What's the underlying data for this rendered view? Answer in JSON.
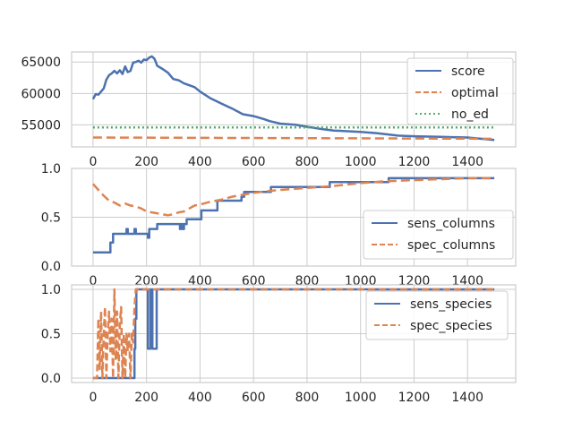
{
  "chart_data": [
    {
      "type": "line",
      "xlim": [
        -80,
        1580
      ],
      "ylim": [
        51500,
        66600
      ],
      "x_ticks": [
        0,
        200,
        400,
        600,
        800,
        1000,
        1200,
        1400
      ],
      "y_ticks": [
        55000,
        60000,
        65000
      ],
      "grid": true,
      "legend_position": "upper right",
      "series": [
        {
          "name": "score",
          "color": "#4c72b0",
          "dash": "solid",
          "points": [
            [
              0,
              59100
            ],
            [
              10,
              59900
            ],
            [
              20,
              59800
            ],
            [
              30,
              60300
            ],
            [
              40,
              60800
            ],
            [
              50,
              62200
            ],
            [
              60,
              62900
            ],
            [
              70,
              63200
            ],
            [
              80,
              63600
            ],
            [
              90,
              63200
            ],
            [
              100,
              63700
            ],
            [
              110,
              63100
            ],
            [
              120,
              64300
            ],
            [
              130,
              63400
            ],
            [
              140,
              63600
            ],
            [
              150,
              64900
            ],
            [
              160,
              65000
            ],
            [
              170,
              65200
            ],
            [
              180,
              64900
            ],
            [
              190,
              65400
            ],
            [
              200,
              65300
            ],
            [
              210,
              65700
            ],
            [
              220,
              65900
            ],
            [
              230,
              65500
            ],
            [
              240,
              64400
            ],
            [
              260,
              63900
            ],
            [
              280,
              63300
            ],
            [
              300,
              62300
            ],
            [
              320,
              62100
            ],
            [
              340,
              61600
            ],
            [
              360,
              61300
            ],
            [
              380,
              61000
            ],
            [
              400,
              60300
            ],
            [
              440,
              59200
            ],
            [
              480,
              58400
            ],
            [
              520,
              57600
            ],
            [
              560,
              56700
            ],
            [
              600,
              56400
            ],
            [
              640,
              55900
            ],
            [
              660,
              55600
            ],
            [
              700,
              55200
            ],
            [
              760,
              55000
            ],
            [
              800,
              54700
            ],
            [
              860,
              54300
            ],
            [
              900,
              54100
            ],
            [
              1000,
              53900
            ],
            [
              1060,
              53700
            ],
            [
              1100,
              53500
            ],
            [
              1140,
              53300
            ],
            [
              1200,
              53200
            ],
            [
              1300,
              53100
            ],
            [
              1400,
              53000
            ],
            [
              1450,
              52800
            ],
            [
              1500,
              52600
            ]
          ]
        },
        {
          "name": "optimal",
          "color": "#dd8452",
          "dash": "10,5",
          "points": [
            [
              0,
              53000
            ],
            [
              1500,
              52800
            ]
          ]
        },
        {
          "name": "no_ed",
          "color": "#55a868",
          "dash": "2,3",
          "points": [
            [
              0,
              54600
            ],
            [
              1500,
              54600
            ]
          ]
        }
      ]
    },
    {
      "type": "line",
      "xlim": [
        -80,
        1580
      ],
      "ylim": [
        0,
        1
      ],
      "x_ticks": [
        0,
        200,
        400,
        600,
        800,
        1000,
        1200,
        1400
      ],
      "y_ticks": [
        0.0,
        0.5,
        1.0
      ],
      "y_tick_labels": [
        "0.0",
        "0.5",
        "1.0"
      ],
      "grid": true,
      "legend_position": "center right",
      "series": [
        {
          "name": "sens_columns",
          "color": "#4c72b0",
          "dash": "solid",
          "step": true,
          "points": [
            [
              0,
              0.14
            ],
            [
              60,
              0.14
            ],
            [
              65,
              0.24
            ],
            [
              70,
              0.24
            ],
            [
              75,
              0.33
            ],
            [
              120,
              0.33
            ],
            [
              125,
              0.38
            ],
            [
              130,
              0.33
            ],
            [
              150,
              0.33
            ],
            [
              155,
              0.38
            ],
            [
              160,
              0.33
            ],
            [
              200,
              0.33
            ],
            [
              205,
              0.29
            ],
            [
              210,
              0.38
            ],
            [
              230,
              0.38
            ],
            [
              240,
              0.43
            ],
            [
              320,
              0.43
            ],
            [
              325,
              0.38
            ],
            [
              330,
              0.43
            ],
            [
              335,
              0.38
            ],
            [
              340,
              0.43
            ],
            [
              345,
              0.43
            ],
            [
              350,
              0.48
            ],
            [
              400,
              0.48
            ],
            [
              405,
              0.57
            ],
            [
              460,
              0.57
            ],
            [
              465,
              0.67
            ],
            [
              550,
              0.67
            ],
            [
              555,
              0.71
            ],
            [
              560,
              0.71
            ],
            [
              565,
              0.76
            ],
            [
              660,
              0.76
            ],
            [
              665,
              0.81
            ],
            [
              880,
              0.81
            ],
            [
              885,
              0.86
            ],
            [
              1100,
              0.86
            ],
            [
              1105,
              0.9
            ],
            [
              1500,
              0.9
            ]
          ]
        },
        {
          "name": "spec_columns",
          "color": "#dd8452",
          "dash": "10,5",
          "points": [
            [
              0,
              0.84
            ],
            [
              20,
              0.78
            ],
            [
              40,
              0.72
            ],
            [
              60,
              0.67
            ],
            [
              80,
              0.65
            ],
            [
              100,
              0.62
            ],
            [
              120,
              0.64
            ],
            [
              140,
              0.62
            ],
            [
              160,
              0.61
            ],
            [
              180,
              0.59
            ],
            [
              200,
              0.56
            ],
            [
              220,
              0.55
            ],
            [
              240,
              0.54
            ],
            [
              260,
              0.53
            ],
            [
              280,
              0.52
            ],
            [
              300,
              0.53
            ],
            [
              320,
              0.55
            ],
            [
              340,
              0.56
            ],
            [
              360,
              0.59
            ],
            [
              380,
              0.62
            ],
            [
              400,
              0.63
            ],
            [
              440,
              0.66
            ],
            [
              480,
              0.68
            ],
            [
              520,
              0.71
            ],
            [
              560,
              0.73
            ],
            [
              600,
              0.75
            ],
            [
              660,
              0.77
            ],
            [
              700,
              0.78
            ],
            [
              800,
              0.8
            ],
            [
              900,
              0.82
            ],
            [
              1000,
              0.85
            ],
            [
              1100,
              0.87
            ],
            [
              1200,
              0.88
            ],
            [
              1300,
              0.89
            ],
            [
              1400,
              0.9
            ],
            [
              1500,
              0.9
            ]
          ]
        }
      ]
    },
    {
      "type": "line",
      "xlim": [
        -80,
        1580
      ],
      "ylim": [
        -0.05,
        1.05
      ],
      "x_ticks": [
        0,
        200,
        400,
        600,
        800,
        1000,
        1200,
        1400
      ],
      "y_ticks": [
        0.0,
        0.5,
        1.0
      ],
      "y_tick_labels": [
        "0.0",
        "0.5",
        "1.0"
      ],
      "grid": true,
      "legend_position": "upper right",
      "series": [
        {
          "name": "sens_species",
          "color": "#4c72b0",
          "dash": "solid",
          "step": true,
          "points": [
            [
              0,
              0
            ],
            [
              150,
              0
            ],
            [
              155,
              0.33
            ],
            [
              158,
              0.67
            ],
            [
              162,
              1
            ],
            [
              200,
              1
            ],
            [
              205,
              0.33
            ],
            [
              215,
              1
            ],
            [
              220,
              1
            ],
            [
              222,
              0.33
            ],
            [
              235,
              0.33
            ],
            [
              238,
              1
            ],
            [
              1500,
              1
            ]
          ]
        },
        {
          "name": "spec_species",
          "color": "#dd8452",
          "dash": "8,4",
          "points": [
            [
              0,
              0
            ],
            [
              15,
              0
            ],
            [
              20,
              0.67
            ],
            [
              25,
              0.1
            ],
            [
              30,
              0.75
            ],
            [
              35,
              0
            ],
            [
              40,
              0.5
            ],
            [
              45,
              0.8
            ],
            [
              50,
              0
            ],
            [
              55,
              0.5
            ],
            [
              60,
              0.75
            ],
            [
              65,
              0.3
            ],
            [
              70,
              0.67
            ],
            [
              75,
              0
            ],
            [
              80,
              1.0
            ],
            [
              85,
              0.2
            ],
            [
              90,
              0.75
            ],
            [
              95,
              0
            ],
            [
              100,
              0.6
            ],
            [
              105,
              0.8
            ],
            [
              110,
              0
            ],
            [
              115,
              0.5
            ],
            [
              120,
              0
            ],
            [
              125,
              0.5
            ],
            [
              130,
              0.3
            ],
            [
              135,
              0.5
            ],
            [
              140,
              0
            ],
            [
              145,
              0.5
            ],
            [
              150,
              0.4
            ],
            [
              155,
              0.8
            ],
            [
              160,
              1
            ],
            [
              1500,
              1
            ]
          ]
        }
      ]
    }
  ]
}
